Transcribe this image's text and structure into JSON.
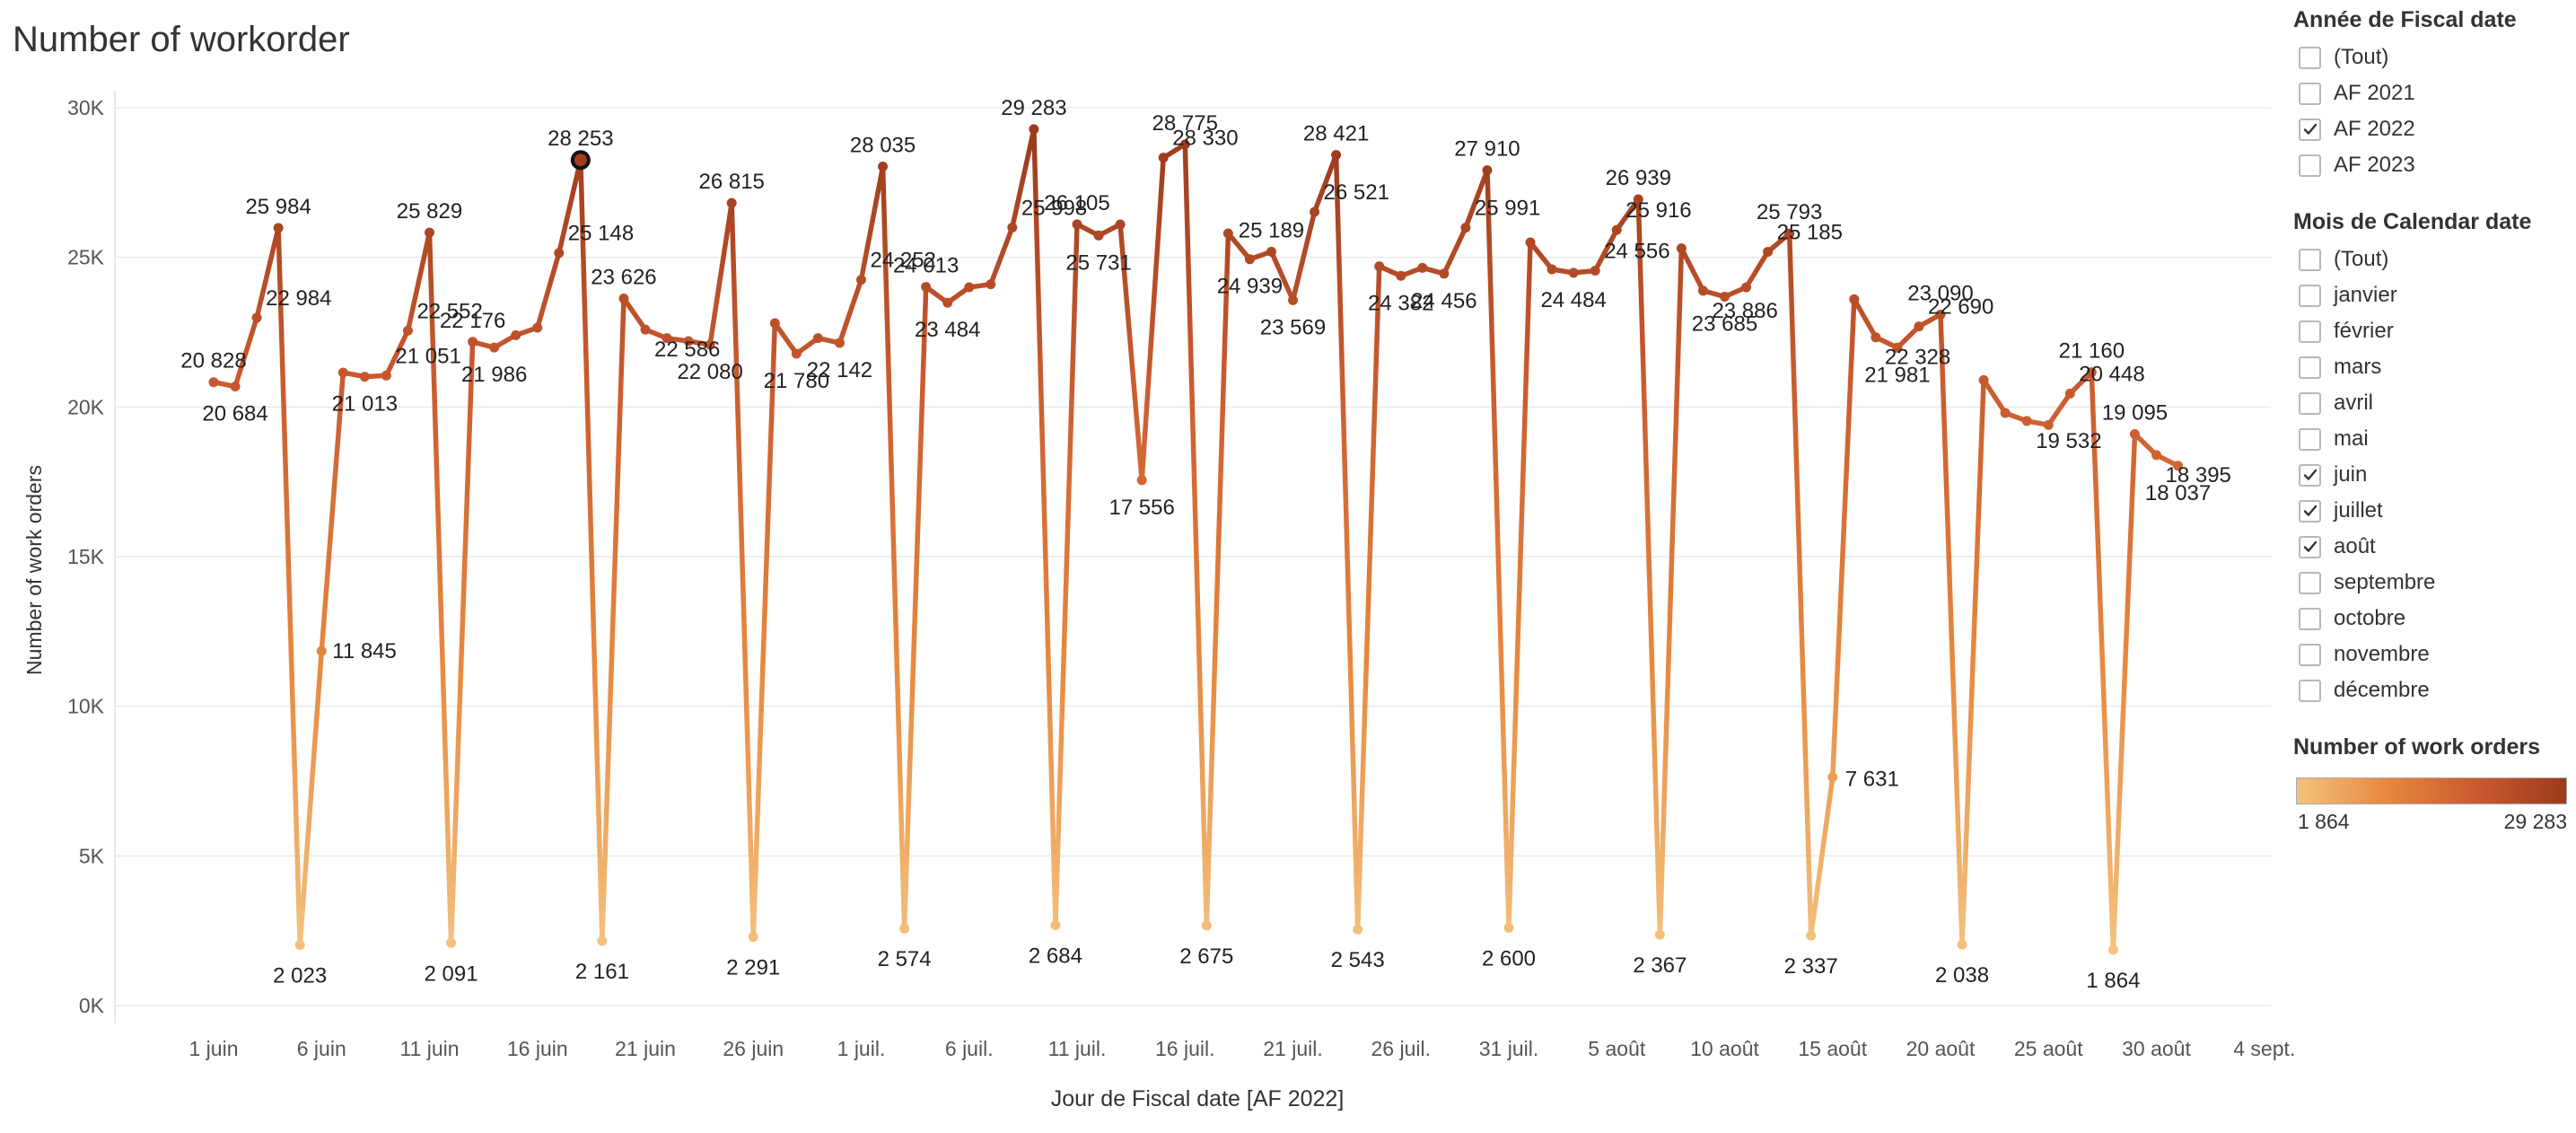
{
  "title": "Number of workorder",
  "chart_data": {
    "type": "line",
    "title": "Number of workorder",
    "xlabel": "Jour de Fiscal date [AF 2022]",
    "ylabel": "Number of work orders",
    "ylim": [
      0,
      30000
    ],
    "y_ticks": [
      {
        "v": 0,
        "label": "0K"
      },
      {
        "v": 5000,
        "label": "5K"
      },
      {
        "v": 10000,
        "label": "10K"
      },
      {
        "v": 15000,
        "label": "15K"
      },
      {
        "v": 20000,
        "label": "20K"
      },
      {
        "v": 25000,
        "label": "25K"
      },
      {
        "v": 30000,
        "label": "30K"
      }
    ],
    "x_ticks": [
      {
        "day": 1,
        "label": "1 juin"
      },
      {
        "day": 6,
        "label": "6 juin"
      },
      {
        "day": 11,
        "label": "11 juin"
      },
      {
        "day": 16,
        "label": "16 juin"
      },
      {
        "day": 21,
        "label": "21 juin"
      },
      {
        "day": 26,
        "label": "26 juin"
      },
      {
        "day": 31,
        "label": "1 juil."
      },
      {
        "day": 36,
        "label": "6 juil."
      },
      {
        "day": 41,
        "label": "11 juil."
      },
      {
        "day": 46,
        "label": "16 juil."
      },
      {
        "day": 51,
        "label": "21 juil."
      },
      {
        "day": 56,
        "label": "26 juil."
      },
      {
        "day": 61,
        "label": "31 juil."
      },
      {
        "day": 66,
        "label": "5 août"
      },
      {
        "day": 71,
        "label": "10 août"
      },
      {
        "day": 76,
        "label": "15 août"
      },
      {
        "day": 81,
        "label": "20 août"
      },
      {
        "day": 86,
        "label": "25 août"
      },
      {
        "day": 91,
        "label": "30 août"
      },
      {
        "day": 96,
        "label": "4 sept."
      }
    ],
    "x_unit": "day index (1 = 1 juin)",
    "color_min": 1864,
    "color_max": 29283,
    "colors": [
      "#f3c27e",
      "#e8883f",
      "#c95a30",
      "#9c3a1c"
    ],
    "highlight_day": 18,
    "points": [
      {
        "day": 1,
        "value": 20828,
        "label": "20 828"
      },
      {
        "day": 2,
        "value": 20684,
        "label": "20 684"
      },
      {
        "day": 3,
        "value": 22984,
        "label": "22 984"
      },
      {
        "day": 4,
        "value": 25984,
        "label": "25 984"
      },
      {
        "day": 5,
        "value": 2023,
        "label": "2 023"
      },
      {
        "day": 6,
        "value": 11845,
        "label": "11 845"
      },
      {
        "day": 7,
        "value": 21150
      },
      {
        "day": 8,
        "value": 21013,
        "label": "21 013"
      },
      {
        "day": 9,
        "value": 21051,
        "label": "21 051"
      },
      {
        "day": 10,
        "value": 22552,
        "label": "22 552"
      },
      {
        "day": 11,
        "value": 25829,
        "label": "25 829"
      },
      {
        "day": 12,
        "value": 2091,
        "label": "2 091"
      },
      {
        "day": 13,
        "value": 22176,
        "label": "22 176"
      },
      {
        "day": 14,
        "value": 21986,
        "label": "21 986"
      },
      {
        "day": 15,
        "value": 22400
      },
      {
        "day": 16,
        "value": 22650
      },
      {
        "day": 17,
        "value": 25148,
        "label": "25 148"
      },
      {
        "day": 18,
        "value": 28253,
        "label": "28 253"
      },
      {
        "day": 19,
        "value": 2161,
        "label": "2 161"
      },
      {
        "day": 20,
        "value": 23626,
        "label": "23 626"
      },
      {
        "day": 21,
        "value": 22586,
        "label": "22 586"
      },
      {
        "day": 22,
        "value": 22300
      },
      {
        "day": 23,
        "value": 22200
      },
      {
        "day": 24,
        "value": 22080,
        "label": "22 080"
      },
      {
        "day": 25,
        "value": 26815,
        "label": "26 815"
      },
      {
        "day": 26,
        "value": 2291,
        "label": "2 291"
      },
      {
        "day": 27,
        "value": 22800
      },
      {
        "day": 28,
        "value": 21780,
        "label": "21 780"
      },
      {
        "day": 29,
        "value": 22300
      },
      {
        "day": 30,
        "value": 22142,
        "label": "22 142"
      },
      {
        "day": 31,
        "value": 24252,
        "label": "24 252"
      },
      {
        "day": 32,
        "value": 28035,
        "label": "28 035"
      },
      {
        "day": 33,
        "value": 2574,
        "label": "2 574"
      },
      {
        "day": 34,
        "value": 24013,
        "label": "24 013"
      },
      {
        "day": 35,
        "value": 23484,
        "label": "23 484"
      },
      {
        "day": 36,
        "value": 24000
      },
      {
        "day": 37,
        "value": 24100
      },
      {
        "day": 38,
        "value": 25998,
        "label": "25 998"
      },
      {
        "day": 39,
        "value": 29283,
        "label": "29 283"
      },
      {
        "day": 40,
        "value": 2684,
        "label": "2 684"
      },
      {
        "day": 41,
        "value": 26105,
        "label": "26 105"
      },
      {
        "day": 42,
        "value": 25731,
        "label": "25 731"
      },
      {
        "day": 43,
        "value": 26100
      },
      {
        "day": 44,
        "value": 17556,
        "label": "17 556"
      },
      {
        "day": 45,
        "value": 28330,
        "label": "28 330"
      },
      {
        "day": 46,
        "value": 28775,
        "label": "28 775"
      },
      {
        "day": 47,
        "value": 2675,
        "label": "2 675"
      },
      {
        "day": 48,
        "value": 25800
      },
      {
        "day": 49,
        "value": 24939,
        "label": "24 939"
      },
      {
        "day": 50,
        "value": 25189,
        "label": "25 189"
      },
      {
        "day": 51,
        "value": 23569,
        "label": "23 569"
      },
      {
        "day": 52,
        "value": 26521,
        "label": "26 521"
      },
      {
        "day": 53,
        "value": 28421,
        "label": "28 421"
      },
      {
        "day": 54,
        "value": 2543,
        "label": "2 543"
      },
      {
        "day": 55,
        "value": 24700
      },
      {
        "day": 56,
        "value": 24382,
        "label": "24 382"
      },
      {
        "day": 57,
        "value": 24650
      },
      {
        "day": 58,
        "value": 24456,
        "label": "24 456"
      },
      {
        "day": 59,
        "value": 25991,
        "label": "25 991"
      },
      {
        "day": 60,
        "value": 27910,
        "label": "27 910"
      },
      {
        "day": 61,
        "value": 2600,
        "label": "2 600"
      },
      {
        "day": 62,
        "value": 25500
      },
      {
        "day": 63,
        "value": 24600
      },
      {
        "day": 64,
        "value": 24484,
        "label": "24 484"
      },
      {
        "day": 65,
        "value": 24556,
        "label": "24 556"
      },
      {
        "day": 66,
        "value": 25916,
        "label": "25 916"
      },
      {
        "day": 67,
        "value": 26939,
        "label": "26 939"
      },
      {
        "day": 68,
        "value": 2367,
        "label": "2 367"
      },
      {
        "day": 69,
        "value": 25300
      },
      {
        "day": 70,
        "value": 23886,
        "label": "23 886"
      },
      {
        "day": 71,
        "value": 23685,
        "label": "23 685"
      },
      {
        "day": 72,
        "value": 24000
      },
      {
        "day": 73,
        "value": 25185,
        "label": "25 185"
      },
      {
        "day": 74,
        "value": 25793,
        "label": "25 793"
      },
      {
        "day": 75,
        "value": 2337,
        "label": "2 337"
      },
      {
        "day": 76,
        "value": 7631,
        "label": "7 631"
      },
      {
        "day": 77,
        "value": 23600
      },
      {
        "day": 78,
        "value": 22328,
        "label": "22 328"
      },
      {
        "day": 79,
        "value": 21981,
        "label": "21 981"
      },
      {
        "day": 80,
        "value": 22690,
        "label": "22 690"
      },
      {
        "day": 81,
        "value": 23090,
        "label": "23 090"
      },
      {
        "day": 82,
        "value": 2038,
        "label": "2 038"
      },
      {
        "day": 83,
        "value": 20900
      },
      {
        "day": 84,
        "value": 19800
      },
      {
        "day": 85,
        "value": 19532,
        "label": "19 532"
      },
      {
        "day": 86,
        "value": 19400
      },
      {
        "day": 87,
        "value": 20448,
        "label": "20 448"
      },
      {
        "day": 88,
        "value": 21160,
        "label": "21 160"
      },
      {
        "day": 89,
        "value": 1864,
        "label": "1 864"
      },
      {
        "day": 90,
        "value": 19095,
        "label": "19 095"
      },
      {
        "day": 91,
        "value": 18395,
        "label": "18 395"
      },
      {
        "day": 92,
        "value": 18037,
        "label": "18 037"
      }
    ]
  },
  "filters": {
    "year": {
      "title": "Année de Fiscal date",
      "options": [
        {
          "label": "(Tout)",
          "checked": false
        },
        {
          "label": "AF 2021",
          "checked": false
        },
        {
          "label": "AF 2022",
          "checked": true
        },
        {
          "label": "AF 2023",
          "checked": false
        }
      ]
    },
    "month": {
      "title": "Mois de Calendar date",
      "options": [
        {
          "label": "(Tout)",
          "checked": false
        },
        {
          "label": "janvier",
          "checked": false
        },
        {
          "label": "février",
          "checked": false
        },
        {
          "label": "mars",
          "checked": false
        },
        {
          "label": "avril",
          "checked": false
        },
        {
          "label": "mai",
          "checked": false
        },
        {
          "label": "juin",
          "checked": true
        },
        {
          "label": "juillet",
          "checked": true
        },
        {
          "label": "août",
          "checked": true
        },
        {
          "label": "septembre",
          "checked": false
        },
        {
          "label": "octobre",
          "checked": false
        },
        {
          "label": "novembre",
          "checked": false
        },
        {
          "label": "décembre",
          "checked": false
        }
      ]
    }
  },
  "legend": {
    "title": "Number of work orders",
    "min_label": "1 864",
    "max_label": "29 283"
  }
}
